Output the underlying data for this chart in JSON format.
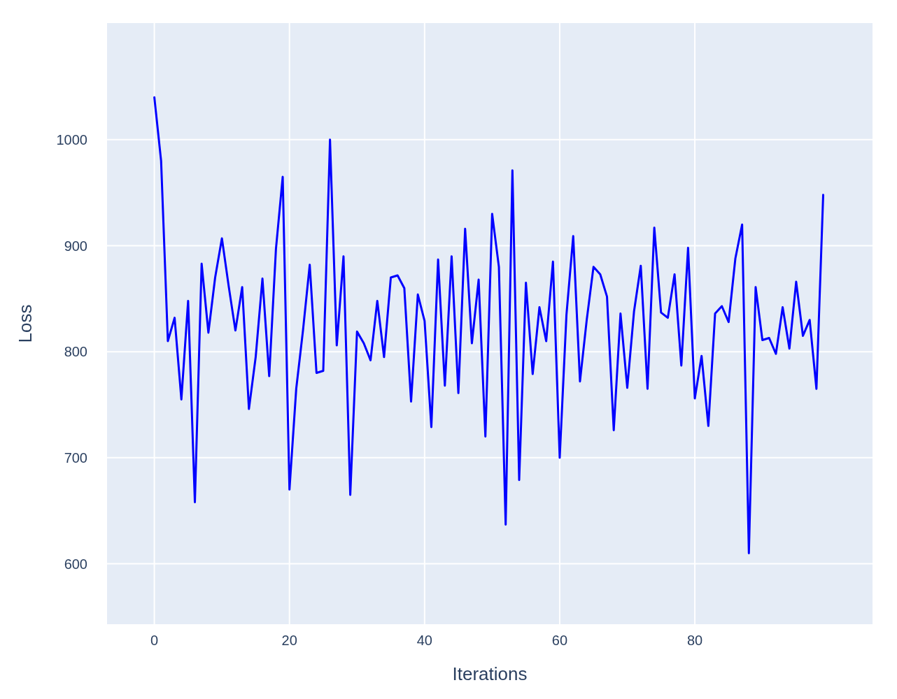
{
  "chart_data": {
    "type": "line",
    "xlabel": "Iterations",
    "ylabel": "Loss",
    "x": [
      0,
      1,
      2,
      3,
      4,
      5,
      6,
      7,
      8,
      9,
      10,
      11,
      12,
      13,
      14,
      15,
      16,
      17,
      18,
      19,
      20,
      21,
      22,
      23,
      24,
      25,
      26,
      27,
      28,
      29,
      30,
      31,
      32,
      33,
      34,
      35,
      36,
      37,
      38,
      39,
      40,
      41,
      42,
      43,
      44,
      45,
      46,
      47,
      48,
      49,
      50,
      51,
      52,
      53,
      54,
      55,
      56,
      57,
      58,
      59,
      60,
      61,
      62,
      63,
      64,
      65,
      66,
      67,
      68,
      69,
      70,
      71,
      72,
      73,
      74,
      75,
      76,
      77,
      78,
      79,
      80,
      81,
      82,
      83,
      84,
      85,
      86,
      87,
      88,
      89,
      90,
      91,
      92,
      93,
      94,
      95,
      96,
      97,
      98,
      99
    ],
    "series": [
      {
        "color": "#0000ff",
        "values": [
          1040,
          980,
          810,
          832,
          755,
          848,
          658,
          883,
          818,
          870,
          907,
          862,
          820,
          861,
          746,
          795,
          869,
          777,
          897,
          965,
          670,
          765,
          820,
          882,
          780,
          782,
          1000,
          806,
          890,
          665,
          819,
          808,
          792,
          848,
          795,
          870,
          872,
          860,
          753,
          854,
          829,
          729,
          887,
          768,
          890,
          761,
          916,
          808,
          868,
          720,
          930,
          880,
          637,
          971,
          679,
          865,
          779,
          842,
          810,
          885,
          700,
          835,
          909,
          772,
          830,
          880,
          873,
          852,
          726,
          836,
          766,
          838,
          881,
          765,
          917,
          837,
          832,
          873,
          787,
          898,
          756,
          796,
          730,
          836,
          843,
          828,
          888,
          920,
          610,
          861,
          811,
          813,
          798,
          842,
          803,
          866,
          815,
          830,
          765,
          948
        ]
      }
    ],
    "xlim": [
      -7,
      106.3
    ],
    "ylim": [
      543,
      1110
    ],
    "xticks": [
      0,
      20,
      40,
      60,
      80
    ],
    "yticks": [
      600,
      700,
      800,
      900,
      1000
    ],
    "grid": true,
    "line_style": "solid",
    "marker": "none"
  }
}
